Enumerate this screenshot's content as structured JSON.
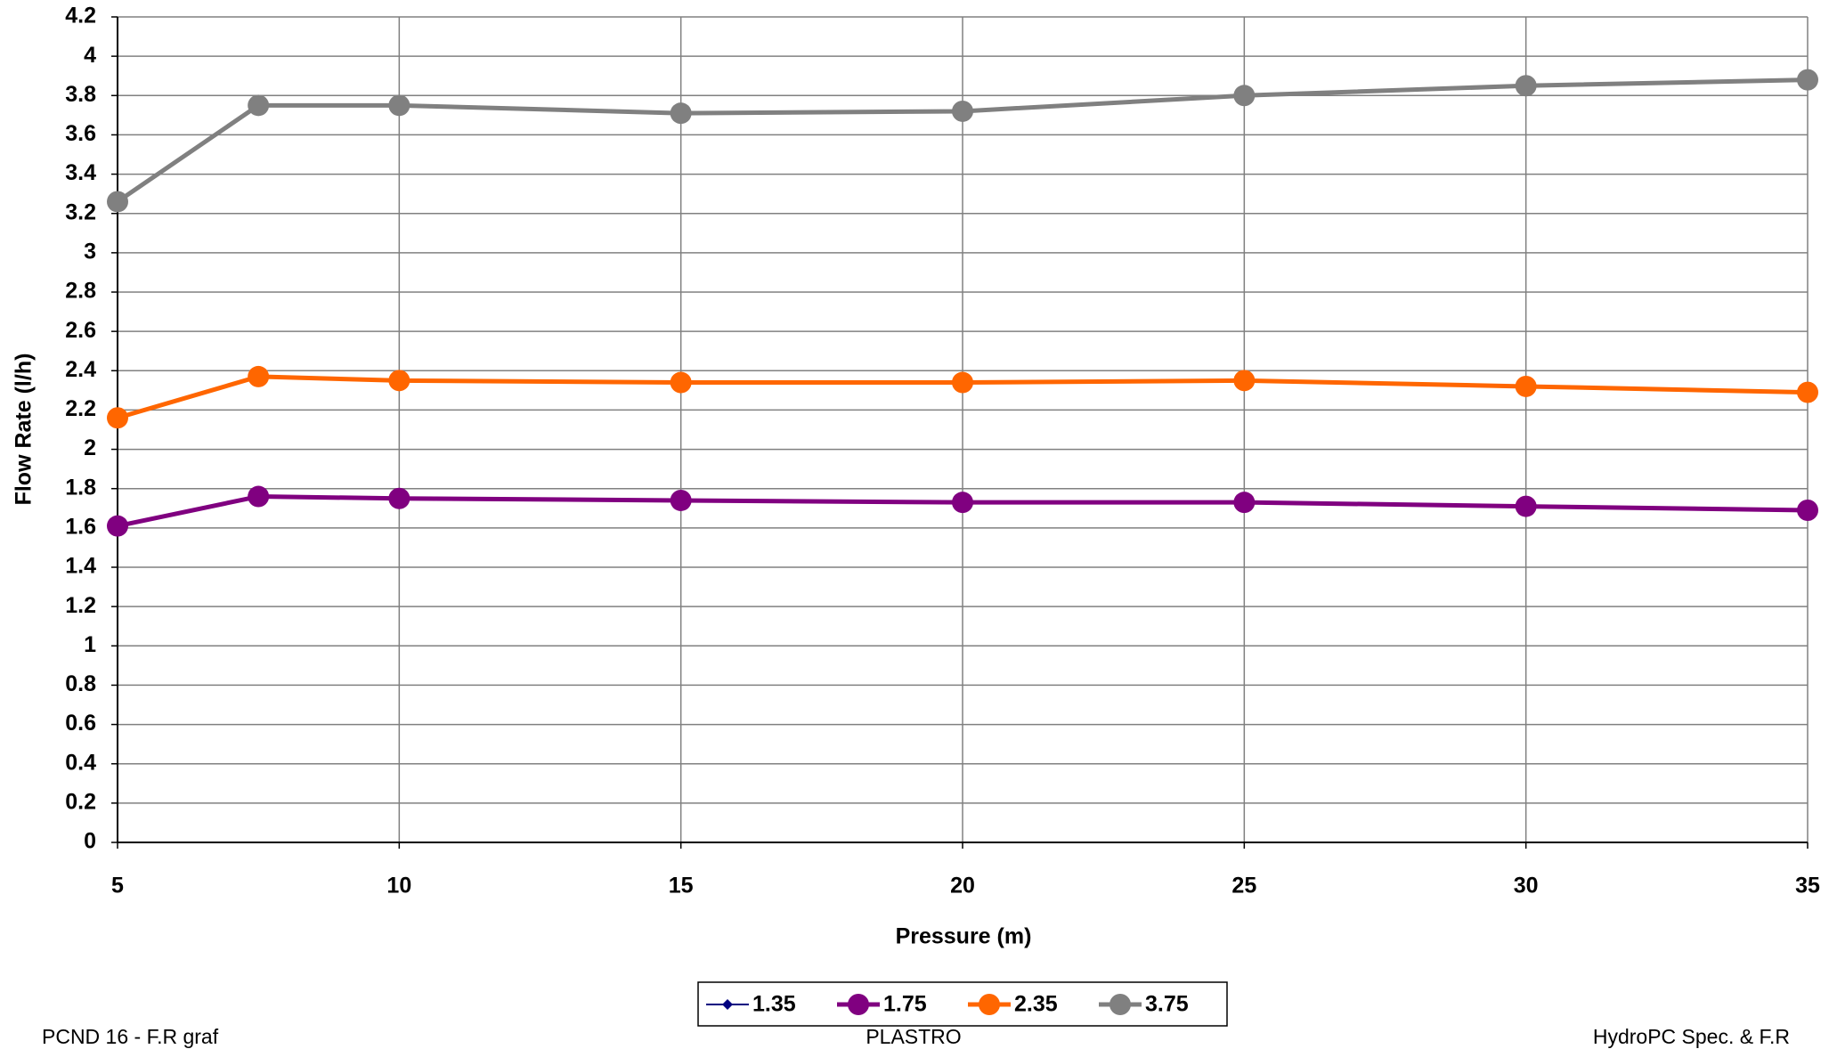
{
  "chart_data": {
    "type": "line",
    "x_label": "Pressure (m)",
    "y_label": "Flow Rate (l/h)",
    "x": [
      5,
      7.5,
      10,
      15,
      20,
      25,
      30,
      35
    ],
    "series": [
      {
        "name": "1.35",
        "color": "#000080",
        "marker": "diamond",
        "values": [
          null,
          null,
          null,
          null,
          null,
          null,
          null,
          null
        ]
      },
      {
        "name": "1.75",
        "color": "#800080",
        "marker": "circle",
        "values": [
          1.61,
          1.76,
          1.75,
          1.74,
          1.73,
          1.73,
          1.71,
          1.69
        ]
      },
      {
        "name": "2.35",
        "color": "#ff6600",
        "marker": "circle",
        "values": [
          2.16,
          2.37,
          2.35,
          2.34,
          2.34,
          2.35,
          2.32,
          2.29
        ]
      },
      {
        "name": "3.75",
        "color": "#808080",
        "marker": "circle",
        "values": [
          3.26,
          3.75,
          3.75,
          3.71,
          3.72,
          3.8,
          3.85,
          3.88
        ]
      }
    ],
    "xlim": [
      5,
      35
    ],
    "xticks": [
      5,
      10,
      15,
      20,
      25,
      30,
      35
    ],
    "ylim": [
      0,
      4.2
    ],
    "yticks": [
      0,
      0.2,
      0.4,
      0.6,
      0.8,
      1,
      1.2,
      1.4,
      1.6,
      1.8,
      2,
      2.2,
      2.4,
      2.6,
      2.8,
      3,
      3.2,
      3.4,
      3.6,
      3.8,
      4,
      4.2
    ],
    "grid": true,
    "legend": "bottom"
  },
  "footer": {
    "left": "PCND 16 - F.R graf",
    "center": "PLASTRO",
    "right": "HydroPC Spec. & F.R"
  }
}
